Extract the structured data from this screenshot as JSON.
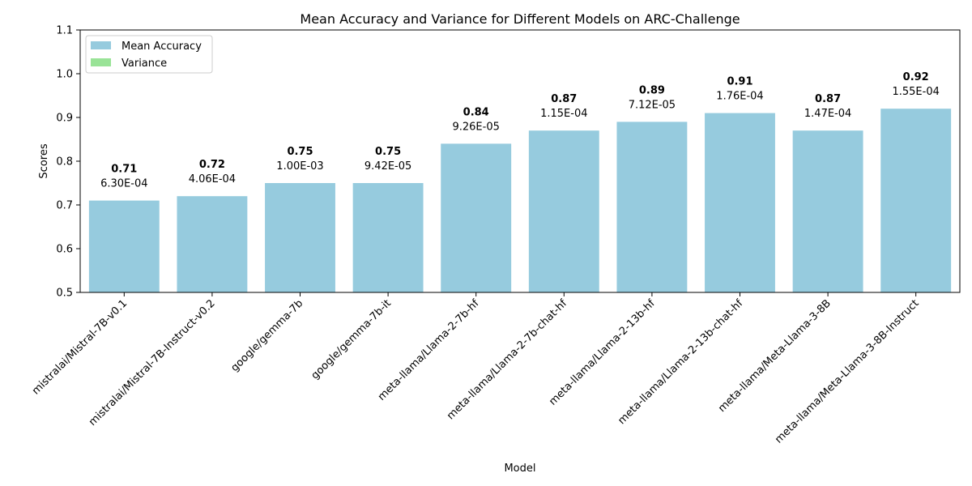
{
  "chart_data": {
    "type": "bar",
    "title": "Mean Accuracy and Variance for Different Models on ARC-Challenge",
    "xlabel": "Model",
    "ylabel": "Scores",
    "ylim": [
      0.5,
      1.1
    ],
    "yticks": [
      "0.5",
      "0.6",
      "0.7",
      "0.8",
      "0.9",
      "1.0",
      "1.1"
    ],
    "categories": [
      "mistralai/Mistral-7B-v0.1",
      "mistralai/Mistral-7B-Instruct-v0.2",
      "google/gemma-7b",
      "google/gemma-7b-it",
      "meta-llama/Llama-2-7b-hf",
      "meta-llama/Llama-2-7b-chat-hf",
      "meta-llama/Llama-2-13b-hf",
      "meta-llama/Llama-2-13b-chat-hf",
      "meta-llama/Meta-Llama-3-8B",
      "meta-llama/Meta-Llama-3-8B-Instruct"
    ],
    "series": [
      {
        "name": "Mean Accuracy",
        "color": "#96cbde",
        "values": [
          0.71,
          0.72,
          0.75,
          0.75,
          0.84,
          0.87,
          0.89,
          0.91,
          0.87,
          0.92
        ],
        "labels": [
          "0.71",
          "0.72",
          "0.75",
          "0.75",
          "0.84",
          "0.87",
          "0.89",
          "0.91",
          "0.87",
          "0.92"
        ]
      },
      {
        "name": "Variance",
        "color": "#99e397",
        "values": [
          0.00063,
          0.000406,
          0.001,
          9.42e-05,
          9.26e-05,
          0.000115,
          7.12e-05,
          0.000176,
          0.000147,
          0.000155
        ],
        "labels": [
          "6.30E-04",
          "4.06E-04",
          "1.00E-03",
          "9.42E-05",
          "9.26E-05",
          "1.15E-04",
          "7.12E-05",
          "1.76E-04",
          "1.47E-04",
          "1.55E-04"
        ]
      }
    ],
    "legend_position": "top-left",
    "grid": false
  }
}
